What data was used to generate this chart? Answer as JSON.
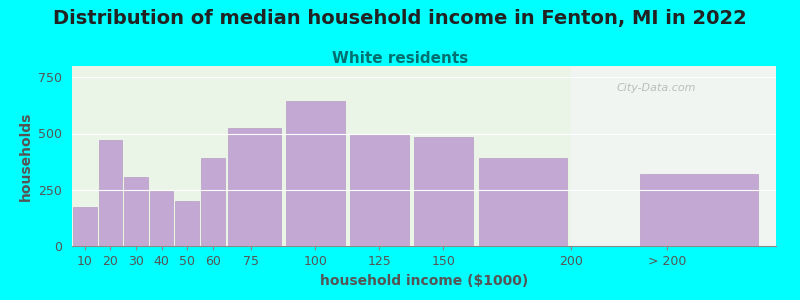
{
  "title": "Distribution of median household income in Fenton, MI in 2022",
  "subtitle": "White residents",
  "xlabel": "household income ($1000)",
  "ylabel": "households",
  "background_color": "#00FFFF",
  "plot_bg_left": "#eaf5e8",
  "plot_bg_right": "#f0f5f2",
  "bar_color": "#c4a8d4",
  "bar_edgecolor": "#b090c0",
  "categories": [
    "10",
    "20",
    "30",
    "40",
    "50",
    "60",
    "75",
    "100",
    "125",
    "150",
    "200",
    "> 200"
  ],
  "values": [
    175,
    470,
    305,
    245,
    200,
    390,
    525,
    645,
    500,
    485,
    390,
    320
  ],
  "bar_lefts": [
    5,
    15,
    25,
    35,
    45,
    55,
    65,
    87.5,
    112.5,
    137.5,
    162.5,
    225
  ],
  "bar_widths": [
    10,
    10,
    10,
    10,
    10,
    10,
    22.5,
    25,
    25,
    25,
    37.5,
    50
  ],
  "xtick_positions": [
    10,
    20,
    30,
    40,
    50,
    60,
    75,
    100,
    125,
    150,
    200,
    237.5
  ],
  "xtick_labels": [
    "10",
    "20",
    "30",
    "40",
    "50",
    "60",
    "75",
    "100",
    "125",
    "150",
    "200",
    "> 200"
  ],
  "yticks": [
    0,
    250,
    500,
    750
  ],
  "ylim": [
    0,
    800
  ],
  "xlim": [
    5,
    280
  ],
  "bg_split_x": 200,
  "title_fontsize": 14,
  "subtitle_fontsize": 11,
  "subtitle_color": "#007070",
  "axis_label_fontsize": 10,
  "tick_fontsize": 9,
  "title_color": "#222222",
  "tick_color": "#555555",
  "watermark": "City-Data.com",
  "watermark_color": "#aaaaaa"
}
